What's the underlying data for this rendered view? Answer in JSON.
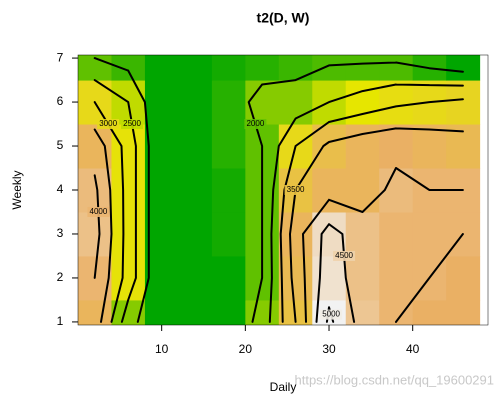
{
  "chart_data": {
    "type": "contour",
    "title": "t2(D, W)",
    "x_label": "Daily",
    "y_label": "Weekly",
    "x": [
      2,
      6,
      10,
      14,
      18,
      22,
      26,
      30,
      34,
      38,
      42,
      46
    ],
    "y": [
      1,
      2,
      3,
      4,
      5,
      6,
      7
    ],
    "z": [
      [
        3800,
        2200,
        1500,
        1500,
        1500,
        2200,
        3500,
        5100,
        4300,
        4000,
        3900,
        3900
      ],
      [
        4000,
        2800,
        1500,
        1500,
        1500,
        2000,
        3700,
        4800,
        4200,
        4000,
        4000,
        3900
      ],
      [
        4200,
        2800,
        1500,
        1500,
        1600,
        2000,
        3800,
        4700,
        4200,
        4000,
        4000,
        4000
      ],
      [
        4100,
        2800,
        1500,
        1500,
        1600,
        2000,
        3500,
        3800,
        3800,
        4100,
        4000,
        4000
      ],
      [
        3800,
        2800,
        1500,
        1500,
        1700,
        2000,
        3000,
        3600,
        3800,
        3900,
        3800,
        3700
      ],
      [
        3000,
        2500,
        1500,
        1500,
        1700,
        2200,
        2200,
        2500,
        2700,
        2900,
        3000,
        3100
      ],
      [
        2000,
        1800,
        1500,
        1500,
        1600,
        1700,
        1800,
        1900,
        1900,
        1900,
        1700,
        1500
      ]
    ],
    "levels": [
      1500,
      2000,
      2500,
      3000,
      3500,
      4000,
      4500,
      5000
    ],
    "zlim": [
      1500,
      5100
    ],
    "colors": [
      "#00a600",
      "#e6e600",
      "#eab064",
      "#f2f2f2"
    ],
    "xlim": [
      0,
      49
    ],
    "ylim": [
      0.93,
      7.07
    ],
    "xticks": [
      10,
      20,
      30,
      40
    ],
    "yticks": [
      1,
      2,
      3,
      4,
      5,
      6,
      7
    ],
    "watermark": "https://blog.csdn.net/qq_19600291"
  }
}
